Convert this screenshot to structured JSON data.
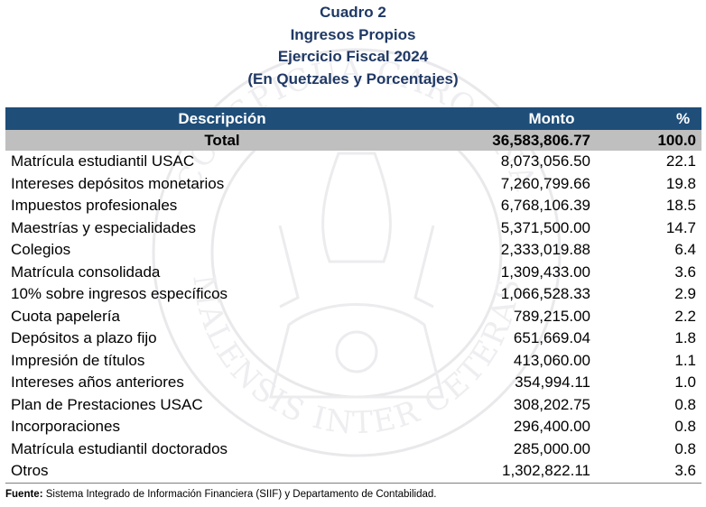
{
  "title": {
    "line1": "Cuadro 2",
    "line2": "Ingresos Propios",
    "line3": "Ejercicio Fiscal 2024",
    "line4": "(En Quetzales y Porcentajes)"
  },
  "colors": {
    "title": "#1f3864",
    "header_bg": "#1f4e79",
    "total_bg": "#bfbfbf"
  },
  "table": {
    "headers": {
      "descripcion": "Descripción",
      "monto": "Monto",
      "pct": "%"
    },
    "total": {
      "label": "Total",
      "monto": "36,583,806.77",
      "pct": "100.0"
    },
    "rows": [
      {
        "desc": "Matrícula estudiantil USAC",
        "monto": "8,073,056.50",
        "pct": "22.1"
      },
      {
        "desc": "Intereses depósitos monetarios",
        "monto": "7,260,799.66",
        "pct": "19.8"
      },
      {
        "desc": "Impuestos profesionales",
        "monto": "6,768,106.39",
        "pct": "18.5"
      },
      {
        "desc": "Maestrías y especialidades",
        "monto": "5,371,500.00",
        "pct": "14.7"
      },
      {
        "desc": "Colegios",
        "monto": "2,333,019.88",
        "pct": "6.4"
      },
      {
        "desc": "Matrícula consolidada",
        "monto": "1,309,433.00",
        "pct": "3.6"
      },
      {
        "desc": "10% sobre ingresos específicos",
        "monto": "1,066,528.33",
        "pct": "2.9"
      },
      {
        "desc": "Cuota papelería",
        "monto": "789,215.00",
        "pct": "2.2"
      },
      {
        "desc": "Depósitos a plazo fijo",
        "monto": "651,669.04",
        "pct": "1.8"
      },
      {
        "desc": "Impresión de títulos",
        "monto": "413,060.00",
        "pct": "1.1"
      },
      {
        "desc": "Intereses años anteriores",
        "monto": "354,994.11",
        "pct": "1.0"
      },
      {
        "desc": "Plan de Prestaciones USAC",
        "monto": "308,202.75",
        "pct": "0.8"
      },
      {
        "desc": "Incorporaciones",
        "monto": "296,400.00",
        "pct": "0.8"
      },
      {
        "desc": "Matrícula estudiantil doctorados",
        "monto": "285,000.00",
        "pct": "0.8"
      },
      {
        "desc": "Otros",
        "monto": "1,302,822.11",
        "pct": "3.6"
      }
    ]
  },
  "footnote": {
    "label": "Fuente:",
    "text": " Sistema Integrado de Información Financiera (SIIF) y Departamento de Contabilidad."
  },
  "watermark": {
    "icon": "university-seal-watermark",
    "top_text": "CONSPICUA CAROLINA",
    "bottom_text": "GUATEMALENSIS INTER CETERAS ORBIS"
  }
}
